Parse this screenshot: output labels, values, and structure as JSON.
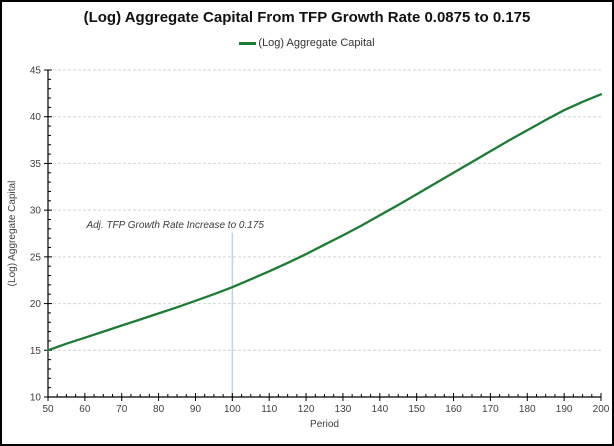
{
  "window": {
    "background": "#ffffff",
    "border_color": "#000000"
  },
  "chart_data": {
    "type": "line",
    "title": "(Log) Aggregate Capital From TFP Growth Rate 0.0875 to 0.175",
    "legend_label": "(Log) Aggregate Capital",
    "legend_position": "top-center",
    "xlabel": "Period",
    "ylabel": "(Log) Aggregate Capital",
    "xlim": [
      50,
      200
    ],
    "ylim": [
      10,
      45
    ],
    "x_major_ticks": [
      50,
      60,
      70,
      80,
      90,
      100,
      110,
      120,
      130,
      140,
      150,
      160,
      170,
      180,
      190,
      200
    ],
    "x_minor_step": 2.5,
    "y_major_ticks": [
      10,
      15,
      20,
      25,
      30,
      35,
      40,
      45
    ],
    "y_minor_step": 1,
    "grid": "horizontal-dashed",
    "colors": {
      "line": "#1e7b34",
      "reference_line": "#b9d5e8",
      "gridline": "#d4d4d4",
      "axis": "#000000",
      "tick_text": "#404040",
      "title_text": "#111111",
      "annotation_text": "#3a3a3a"
    },
    "series": [
      {
        "name": "(Log) Aggregate Capital",
        "color": "#1e7b34",
        "x": [
          50,
          55,
          60,
          65,
          70,
          75,
          80,
          85,
          90,
          95,
          100,
          105,
          110,
          115,
          120,
          125,
          130,
          135,
          140,
          145,
          150,
          155,
          160,
          165,
          170,
          175,
          180,
          185,
          190,
          195,
          200
        ],
        "y": [
          15.0,
          15.7,
          16.35,
          17.0,
          17.65,
          18.3,
          18.95,
          19.6,
          20.3,
          21.0,
          21.75,
          22.6,
          23.45,
          24.35,
          25.3,
          26.3,
          27.3,
          28.35,
          29.45,
          30.55,
          31.7,
          32.85,
          34.0,
          35.15,
          36.3,
          37.45,
          38.55,
          39.65,
          40.7,
          41.6,
          42.4
        ]
      }
    ],
    "annotation": {
      "text": "Adj. TFP Growth Rate Increase to 0.175",
      "x": 84.5,
      "y": 28.4
    },
    "reference_line": {
      "x": 100,
      "y_from": 10,
      "y_to": 27.6
    }
  }
}
